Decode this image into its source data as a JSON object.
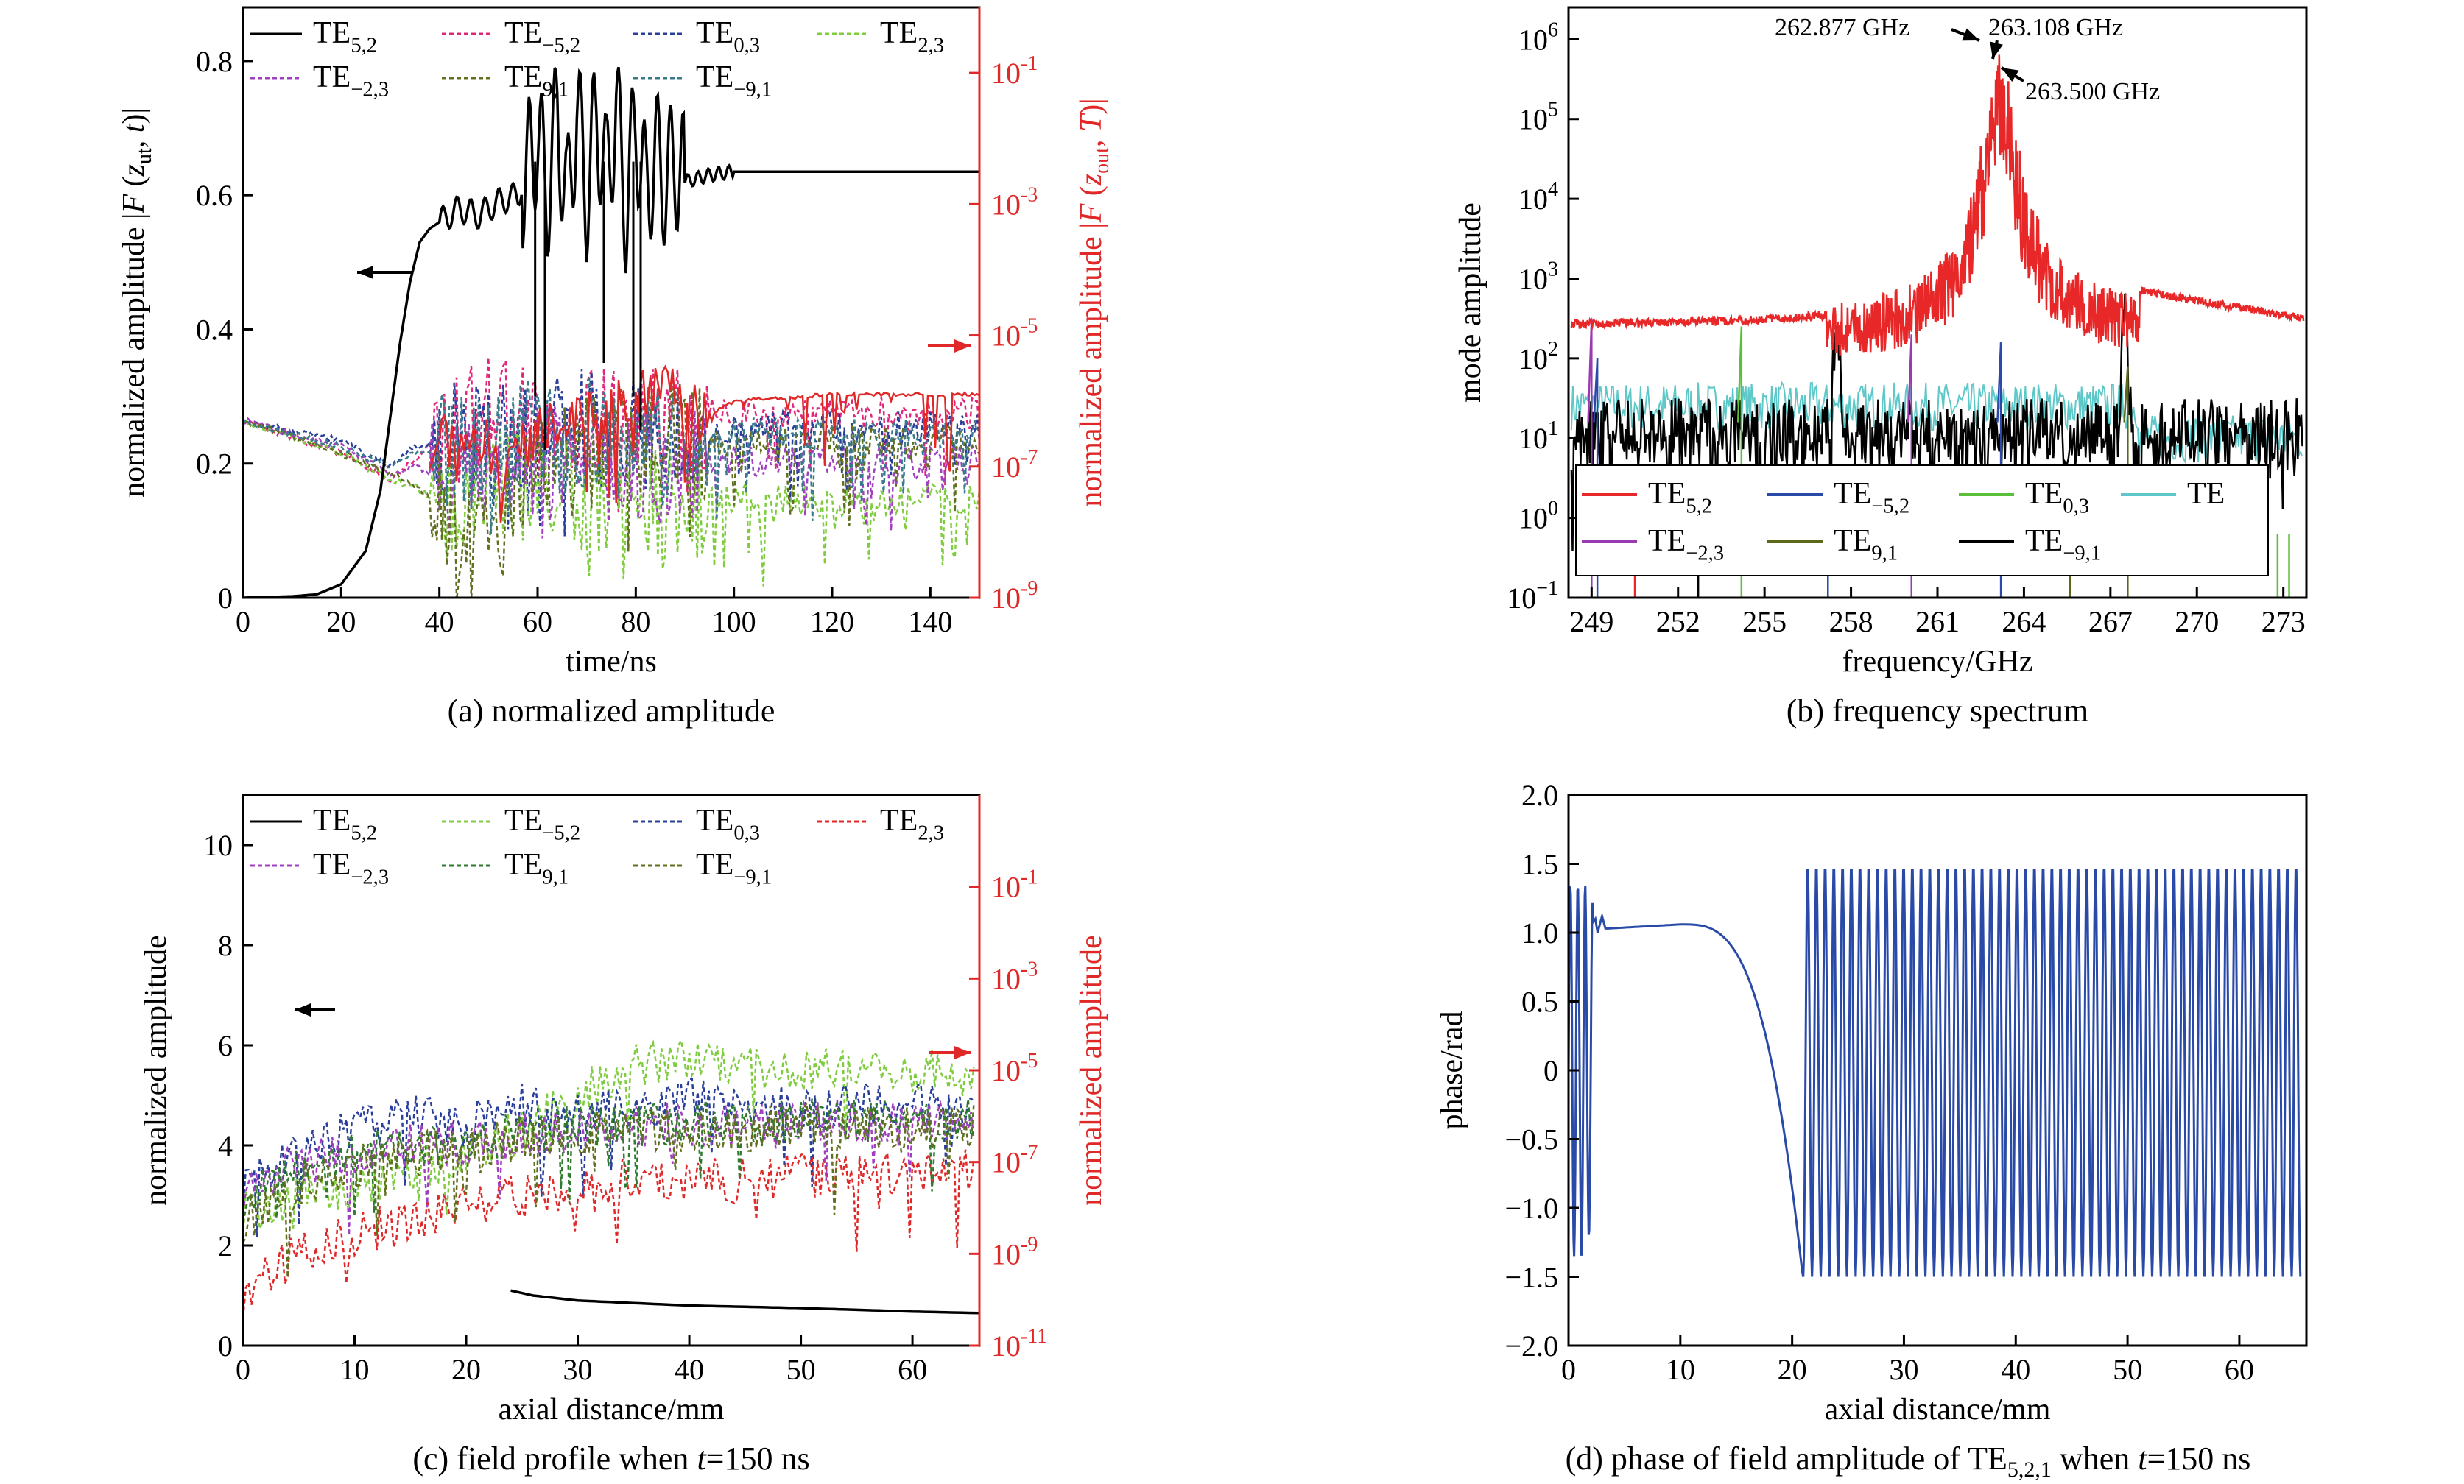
{
  "chart_data": [
    {
      "type": "line",
      "id": "a",
      "caption": "(a) normalized amplitude",
      "xlabel": "time/ns",
      "ylabel_left": "normalized amplitude |F (z_ut, t)|",
      "ylabel_right": "normalized amplitude |F (z_out, T)|",
      "xlim": [
        0,
        150
      ],
      "ylim_left": [
        0,
        0.88
      ],
      "ylim_right_log": [
        -9,
        0
      ],
      "x_ticks": [
        "0",
        "20",
        "40",
        "60",
        "80",
        "100",
        "120",
        "140"
      ],
      "y_ticks_left": [
        "0",
        "0.2",
        "0.4",
        "0.6",
        "0.8"
      ],
      "y_ticks_right": [
        {
          "base": "10",
          "exp": "-1"
        },
        {
          "base": "10",
          "exp": "-3"
        },
        {
          "base": "10",
          "exp": "-5"
        },
        {
          "base": "10",
          "exp": "-7"
        },
        {
          "base": "10",
          "exp": "-9"
        }
      ],
      "legend": [
        {
          "name": "TE",
          "sub": "5,2",
          "color": "#000000",
          "dash": false
        },
        {
          "name": "TE",
          "sub": "−5,2",
          "color": "#e0287a",
          "dash": true
        },
        {
          "name": "TE",
          "sub": "0,3",
          "color": "#2a3f9a",
          "dash": true
        },
        {
          "name": "TE",
          "sub": "2,3",
          "color": "#7fcc3f",
          "dash": true
        },
        {
          "name": "TE",
          "sub": "−2,3",
          "color": "#a040c0",
          "dash": true
        },
        {
          "name": "TE",
          "sub": "9,1",
          "color": "#607020",
          "dash": true
        },
        {
          "name": "TE",
          "sub": "−9,1",
          "color": "#3a7a8a",
          "dash": true
        }
      ],
      "series": [
        {
          "name": "TE5,2",
          "axis": "left",
          "x": [
            0,
            10,
            15,
            20,
            25,
            28,
            30,
            32,
            34,
            36,
            38,
            40,
            44,
            48,
            52,
            56,
            58,
            60,
            62,
            64,
            66,
            68,
            70,
            72,
            74,
            76,
            78,
            80,
            82,
            84,
            86,
            88,
            90,
            95,
            100,
            120,
            150
          ],
          "values": [
            0,
            0.002,
            0.005,
            0.02,
            0.07,
            0.16,
            0.27,
            0.38,
            0.47,
            0.53,
            0.55,
            0.56,
            0.58,
            0.57,
            0.59,
            0.6,
            0.64,
            0.69,
            0.6,
            0.72,
            0.58,
            0.73,
            0.6,
            0.72,
            0.62,
            0.73,
            0.58,
            0.71,
            0.6,
            0.66,
            0.62,
            0.65,
            0.62,
            0.63,
            0.635,
            0.635,
            0.635
          ]
        },
        {
          "name": "TE−5,2",
          "axis": "right_log",
          "x": [
            0,
            20,
            30,
            35,
            40,
            45,
            50,
            55,
            60,
            70,
            80,
            90,
            95,
            100,
            150
          ],
          "values": [
            -6.3,
            -6.8,
            -7.2,
            -6.9,
            -6.5,
            -6.3,
            -6.2,
            -6.1,
            -6.5,
            -6.4,
            -6.3,
            -6.4,
            -6.2,
            -6.2,
            -6.2
          ]
        },
        {
          "name": "TE0,3",
          "axis": "right_log",
          "x": [
            0,
            20,
            30,
            35,
            40,
            45,
            50,
            55,
            60,
            70,
            80,
            90,
            100,
            150
          ],
          "values": [
            -6.3,
            -6.6,
            -7.0,
            -6.7,
            -6.6,
            -6.5,
            -6.5,
            -6.4,
            -6.5,
            -6.4,
            -6.5,
            -6.5,
            -6.4,
            -6.4
          ]
        },
        {
          "name": "TE2,3",
          "axis": "right_log",
          "x": [
            0,
            20,
            30,
            35,
            40,
            45,
            50,
            55,
            60,
            70,
            80,
            90,
            100,
            150
          ],
          "values": [
            -6.3,
            -6.8,
            -7.2,
            -7.3,
            -7.6,
            -7.5,
            -7.4,
            -7.2,
            -7.4,
            -7.5,
            -7.6,
            -7.5,
            -7.5,
            -7.5
          ]
        },
        {
          "name": "TE−2,3",
          "axis": "right_log",
          "x": [
            0,
            20,
            30,
            35,
            40,
            45,
            50,
            55,
            60,
            70,
            80,
            90,
            100,
            150
          ],
          "values": [
            -6.3,
            -6.7,
            -7.1,
            -7.0,
            -7.2,
            -7.1,
            -7.0,
            -6.9,
            -6.9,
            -7.0,
            -7.0,
            -7.0,
            -6.9,
            -6.9
          ]
        },
        {
          "name": "TE9,1",
          "axis": "right_log",
          "x": [
            0,
            20,
            30,
            35,
            40,
            45,
            50,
            55,
            60,
            70,
            80,
            90,
            100,
            150
          ],
          "values": [
            -6.3,
            -6.8,
            -7.1,
            -7.3,
            -7.6,
            -7.7,
            -7.6,
            -7.4,
            -6.8,
            -6.6,
            -6.7,
            -6.6,
            -6.6,
            -6.6
          ]
        },
        {
          "name": "TE−9,1",
          "axis": "right_log",
          "x": [
            0,
            20,
            30,
            35,
            40,
            45,
            50,
            55,
            60,
            70,
            80,
            90,
            100,
            150
          ],
          "values": [
            -6.3,
            -6.7,
            -7.0,
            -6.8,
            -6.7,
            -6.7,
            -6.6,
            -6.5,
            -6.6,
            -6.5,
            -6.6,
            -6.6,
            -6.5,
            -6.5
          ]
        },
        {
          "name": "TE2,3 (red)",
          "axis": "right_log",
          "x": [
            38,
            40,
            42,
            45,
            50,
            55,
            60,
            70,
            80,
            85,
            90,
            95,
            100,
            110,
            120,
            150
          ],
          "values": [
            -7.0,
            -6.6,
            -6.4,
            -6.5,
            -6.7,
            -6.8,
            -6.5,
            -6.2,
            -6.0,
            -5.7,
            -6.0,
            -6.2,
            -6.0,
            -5.95,
            -5.9,
            -5.9
          ]
        }
      ]
    },
    {
      "type": "line",
      "id": "b",
      "caption": "(b) frequency spectrum",
      "xlabel": "frequency/GHz",
      "ylabel": "mode amplitude",
      "xlim": [
        248.2,
        273.8
      ],
      "ylim_log": [
        -1,
        6.4
      ],
      "x_ticks": [
        "249",
        "252",
        "255",
        "258",
        "261",
        "264",
        "267",
        "270",
        "273"
      ],
      "y_ticks": [
        {
          "base": "10",
          "exp": "6"
        },
        {
          "base": "10",
          "exp": "5"
        },
        {
          "base": "10",
          "exp": "4"
        },
        {
          "base": "10",
          "exp": "3"
        },
        {
          "base": "10",
          "exp": "2"
        },
        {
          "base": "10",
          "exp": "1"
        },
        {
          "base": "10",
          "exp": "0"
        },
        {
          "base": "10",
          "exp": "−1"
        }
      ],
      "annotations": [
        "262.877 GHz",
        "263.108 GHz",
        "263.500 GHz"
      ],
      "legend": [
        {
          "name": "TE",
          "sub": "5,2",
          "color": "#e82828"
        },
        {
          "name": "TE",
          "sub": "−5,2",
          "color": "#2a4aa8"
        },
        {
          "name": "TE",
          "sub": "0,3",
          "color": "#5cbf3a"
        },
        {
          "name": "TE",
          "sub": "",
          "color": "#5ec8c8"
        },
        {
          "name": "TE",
          "sub": "−2,3",
          "color": "#9a3ab0"
        },
        {
          "name": "TE",
          "sub": "9,1",
          "color": "#5a6a1a"
        },
        {
          "name": "TE",
          "sub": "−9,1",
          "color": "#000000"
        }
      ],
      "series": [
        {
          "name": "TE5,2",
          "peaks": [
            262.877,
            263.108,
            263.5
          ],
          "peak_log": 6.1,
          "floor_log_at_249": 2.45,
          "floor_log_at_273": 2.5
        },
        {
          "name": "TE−9,1",
          "peaks": [
            257.5,
            267.5
          ],
          "peak_log": 2.6,
          "floor_log": 1.2
        },
        {
          "name": "TE0,3",
          "peaks": [
            254.2
          ],
          "peak_log": 2.4
        },
        {
          "name": "TE−2,3",
          "peaks": [
            249.0,
            260.0
          ],
          "peak_log": 2.3
        },
        {
          "name": "TE−5,2",
          "peaks": [
            263.2
          ],
          "peak_log": 2.2
        },
        {
          "name": "TE",
          "peaks": [],
          "floor_log": 1.5
        }
      ]
    },
    {
      "type": "line",
      "id": "c",
      "caption_pre": "(c) field profile when ",
      "caption_italic": "t",
      "caption_post": "=150 ns",
      "xlabel": "axial distance/mm",
      "ylabel_left": "normalized amplitude",
      "ylabel_right": "normalized amplitude",
      "xlim": [
        0,
        66
      ],
      "ylim_left": [
        0,
        11
      ],
      "ylim_right_log": [
        -11,
        1
      ],
      "x_ticks": [
        "0",
        "10",
        "20",
        "30",
        "40",
        "50",
        "60"
      ],
      "y_ticks_left": [
        "0",
        "2",
        "4",
        "6",
        "8",
        "10"
      ],
      "y_ticks_right": [
        {
          "base": "10",
          "exp": "-1"
        },
        {
          "base": "10",
          "exp": "-3"
        },
        {
          "base": "10",
          "exp": "-5"
        },
        {
          "base": "10",
          "exp": "-7"
        },
        {
          "base": "10",
          "exp": "-9"
        },
        {
          "base": "10",
          "exp": "-11"
        }
      ],
      "legend": [
        {
          "name": "TE",
          "sub": "5,2",
          "color": "#000000",
          "dash": false
        },
        {
          "name": "TE",
          "sub": "−5,2",
          "color": "#7fcc3f",
          "dash": true
        },
        {
          "name": "TE",
          "sub": "0,3",
          "color": "#2a3f9a",
          "dash": true
        },
        {
          "name": "TE",
          "sub": "2,3",
          "color": "#e02828",
          "dash": true
        },
        {
          "name": "TE",
          "sub": "−2,3",
          "color": "#a040c0",
          "dash": true
        },
        {
          "name": "TE",
          "sub": "9,1",
          "color": "#2f7a2f",
          "dash": true
        },
        {
          "name": "TE",
          "sub": "−9,1",
          "color": "#607020",
          "dash": true
        }
      ],
      "series": [
        {
          "name": "TE5,2",
          "axis": "left",
          "x": [
            24,
            26,
            30,
            40,
            50,
            60,
            66
          ],
          "values": [
            1.1,
            1.0,
            0.9,
            0.8,
            0.75,
            0.68,
            0.65
          ]
        },
        {
          "name": "TE−5,2",
          "axis": "left",
          "x": [
            0,
            5,
            10,
            15,
            20,
            25,
            30,
            35,
            40,
            45,
            50,
            55,
            60,
            65
          ],
          "values": [
            2.6,
            3.0,
            3.2,
            3.5,
            3.8,
            4.3,
            5.0,
            5.6,
            5.7,
            5.6,
            5.5,
            5.6,
            5.5,
            5.5
          ]
        },
        {
          "name": "TE0,3",
          "axis": "left",
          "x": [
            0,
            5,
            10,
            15,
            20,
            25,
            30,
            35,
            40,
            45,
            50,
            55,
            60,
            65
          ],
          "values": [
            3.2,
            3.9,
            4.3,
            4.6,
            4.4,
            4.8,
            4.6,
            4.7,
            4.9,
            4.8,
            4.7,
            4.8,
            4.8,
            4.7
          ]
        },
        {
          "name": "TE2,3",
          "axis": "left",
          "x": [
            0,
            3,
            6,
            10,
            15,
            20,
            25,
            30,
            35,
            40,
            45,
            50,
            55,
            60,
            65
          ],
          "values": [
            1.0,
            1.5,
            2.0,
            2.2,
            2.5,
            2.8,
            3.0,
            3.2,
            3.3,
            3.3,
            3.3,
            3.4,
            3.4,
            3.5,
            3.5
          ]
        },
        {
          "name": "TE−2,3",
          "axis": "left",
          "x": [
            0,
            5,
            10,
            15,
            20,
            25,
            30,
            35,
            40,
            45,
            50,
            55,
            60,
            65
          ],
          "values": [
            3.1,
            3.6,
            3.9,
            4.0,
            4.0,
            4.2,
            4.3,
            4.4,
            4.4,
            4.4,
            4.5,
            4.5,
            4.4,
            4.4
          ]
        },
        {
          "name": "TE9,1",
          "axis": "left",
          "x": [
            0,
            5,
            10,
            15,
            20,
            25,
            30,
            35,
            40,
            45,
            50,
            55,
            60,
            65
          ],
          "values": [
            2.9,
            3.5,
            3.8,
            4.0,
            4.1,
            4.2,
            4.4,
            4.4,
            4.5,
            4.4,
            4.5,
            4.5,
            4.5,
            4.5
          ]
        },
        {
          "name": "TE−9,1",
          "axis": "left",
          "x": [
            0,
            5,
            10,
            15,
            20,
            25,
            30,
            35,
            40,
            45,
            50,
            55,
            60,
            65
          ],
          "values": [
            2.5,
            3.2,
            3.6,
            3.8,
            4.0,
            4.1,
            4.2,
            4.3,
            4.3,
            4.3,
            4.4,
            4.4,
            4.3,
            4.4
          ]
        }
      ]
    },
    {
      "type": "line",
      "id": "d",
      "caption_pre": "(d) phase of field amplitude of TE",
      "caption_sub": "5,2,1",
      "caption_mid": " when ",
      "caption_italic": "t",
      "caption_post": "=150 ns",
      "xlabel": "axial distance/mm",
      "ylabel": "phase/rad",
      "xlim": [
        0,
        66
      ],
      "ylim": [
        -2.0,
        2.0
      ],
      "x_ticks": [
        "0",
        "10",
        "20",
        "30",
        "40",
        "50",
        "60"
      ],
      "y_ticks": [
        "2.0",
        "1.5",
        "1.0",
        "0.5",
        "0",
        "−0.5",
        "−1.0",
        "−1.5",
        "−2.0"
      ],
      "series": [
        {
          "name": "TE5,2,1 phase",
          "x": [
            0,
            2,
            3,
            5,
            10,
            15,
            18,
            20,
            21,
            66
          ],
          "values": [
            0.0,
            -1.3,
            1.05,
            1.05,
            1.06,
            0.8,
            0.2,
            -0.8,
            -1.55,
            0.0
          ],
          "oscillation_start": 21,
          "oscillation_amplitude": 1.5
        }
      ]
    }
  ]
}
